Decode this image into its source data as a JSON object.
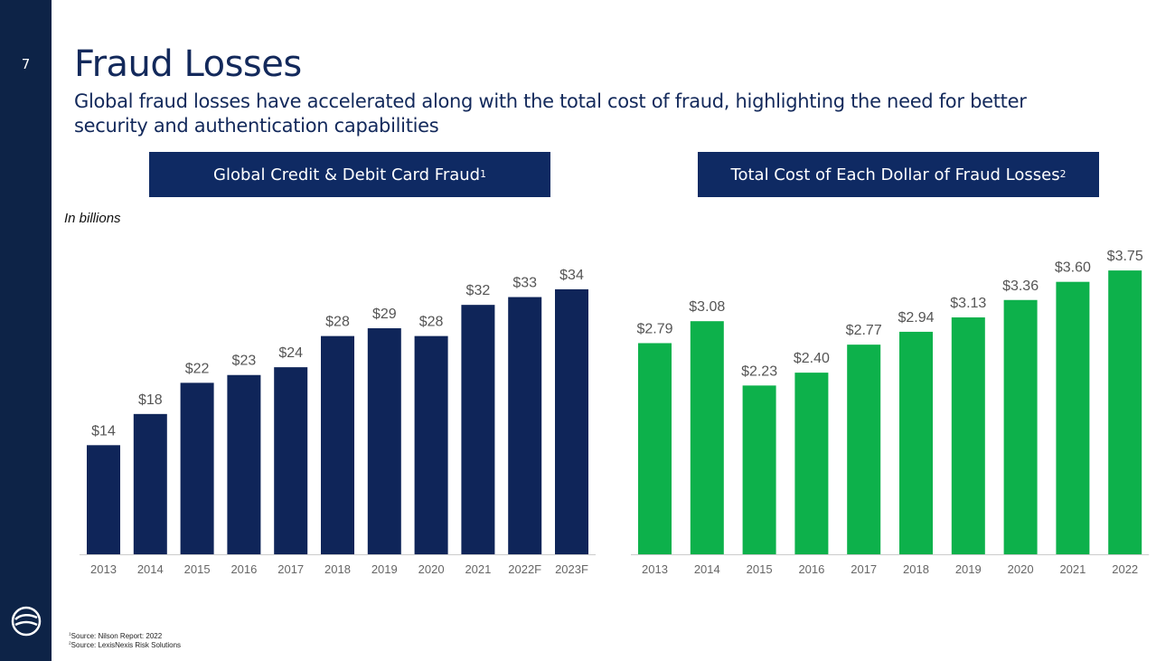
{
  "page": {
    "number": "7",
    "title": "Fraud Losses",
    "subtitle": "Global fraud losses have accelerated along with the total cost of fraud, highlighting the need for better security and authentication capabilities",
    "units_label": "In billions",
    "left_header": "Global Credit & Debit Card Fraud",
    "left_header_sup": "1",
    "right_header": "Total Cost of Each Dollar of Fraud Losses",
    "right_header_sup": "2",
    "footnote_1_sup": "1",
    "footnote_1": "Source: Nilson Report: 2022",
    "footnote_2_sup": "2",
    "footnote_2": "Source: LexisNexis Risk Solutions"
  },
  "colors": {
    "sidebar": "#0d2347",
    "navy_bar": "#0f2559",
    "green_bar": "#0db14b",
    "axis": "#cccccc",
    "label": "#555555",
    "tick": "#666666"
  },
  "chart_data": [
    {
      "type": "bar",
      "title": "Global Credit & Debit Card Fraud",
      "ylabel": "In billions",
      "categories": [
        "2013",
        "2014",
        "2015",
        "2016",
        "2017",
        "2018",
        "2019",
        "2020",
        "2021",
        "2022F",
        "2023F"
      ],
      "values": [
        14,
        18,
        22,
        23,
        24,
        28,
        29,
        28,
        32,
        33,
        34
      ],
      "labels": [
        "$14",
        "$18",
        "$22",
        "$23",
        "$24",
        "$28",
        "$29",
        "$28",
        "$32",
        "$33",
        "$34"
      ],
      "ylim": [
        0,
        40
      ],
      "grid": false
    },
    {
      "type": "bar",
      "title": "Total Cost of Each Dollar of Fraud Losses",
      "categories": [
        "2013",
        "2014",
        "2015",
        "2016",
        "2017",
        "2018",
        "2019",
        "2020",
        "2021",
        "2022"
      ],
      "values": [
        2.79,
        3.08,
        2.23,
        2.4,
        2.77,
        2.94,
        3.13,
        3.36,
        3.6,
        3.75
      ],
      "labels": [
        "$2.79",
        "$3.08",
        "$2.23",
        "$2.40",
        "$2.77",
        "$2.94",
        "$3.13",
        "$3.36",
        "$3.60",
        "$3.75"
      ],
      "ylim": [
        0,
        4.4
      ],
      "grid": false
    }
  ]
}
